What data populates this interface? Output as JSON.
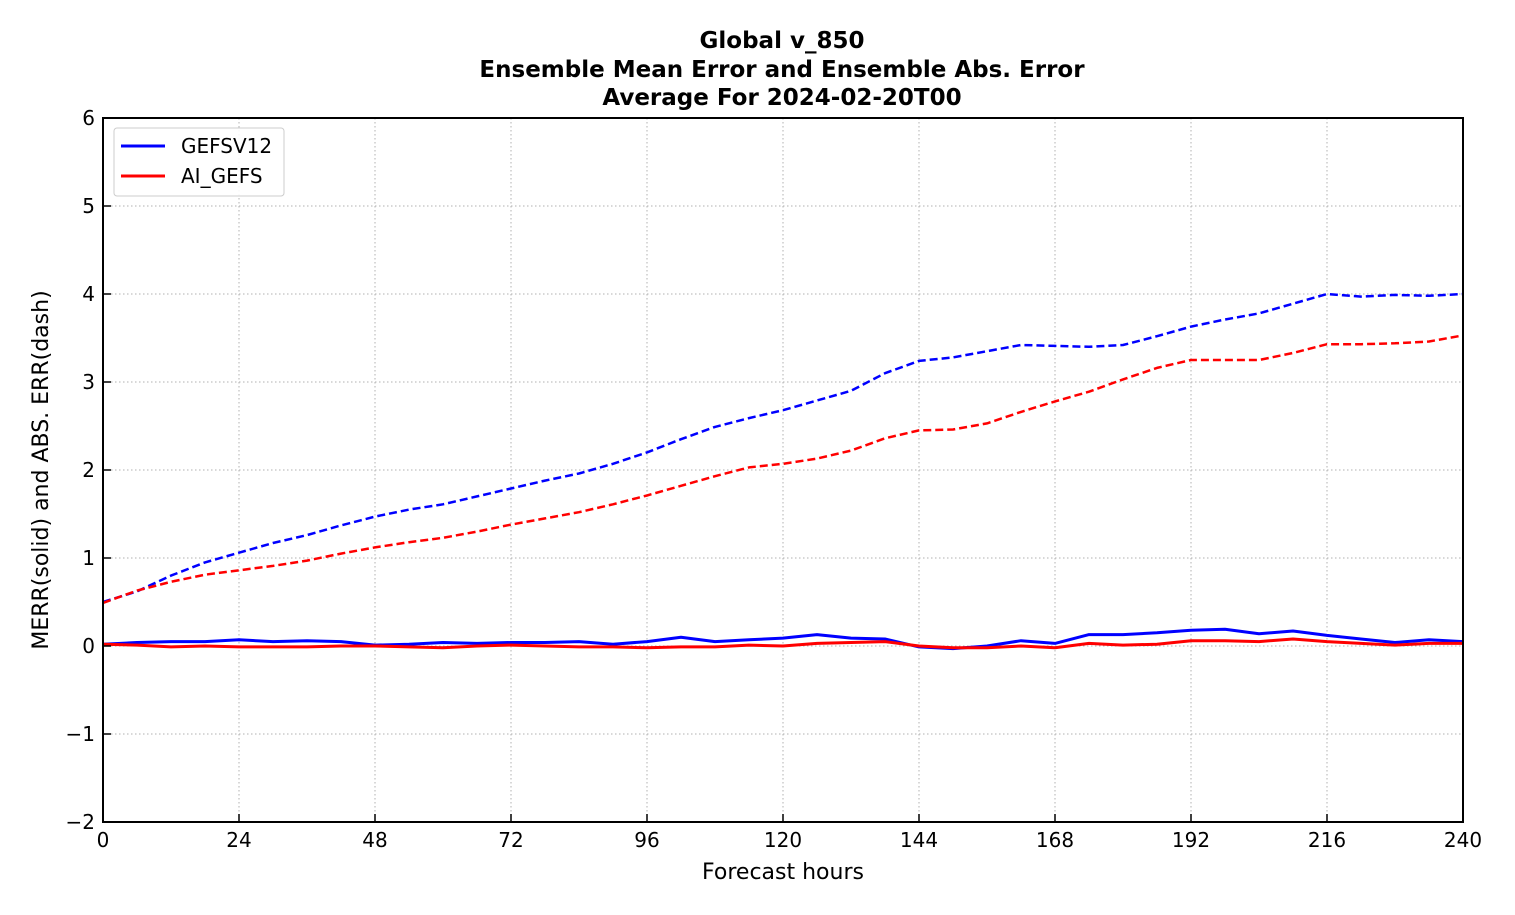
{
  "chart_data": {
    "type": "line",
    "title_lines": [
      "Global v_850",
      "Ensemble Mean Error and Ensemble Abs. Error",
      "Average For 2024-02-20T00"
    ],
    "xlabel": "Forecast hours",
    "ylabel": "MERR(solid) and ABS. ERR(dash)",
    "xlim": [
      0,
      240
    ],
    "ylim": [
      -2,
      6
    ],
    "x_ticks": [
      0,
      24,
      48,
      72,
      96,
      120,
      144,
      168,
      192,
      216,
      240
    ],
    "y_ticks": [
      -2,
      -1,
      0,
      1,
      2,
      3,
      4,
      5,
      6
    ],
    "y_tick_labels": [
      "−2",
      "−1",
      "0",
      "1",
      "2",
      "3",
      "4",
      "5",
      "6"
    ],
    "grid": true,
    "legend_placement": "top-left",
    "x": [
      0,
      6,
      12,
      18,
      24,
      30,
      36,
      42,
      48,
      54,
      60,
      66,
      72,
      78,
      84,
      90,
      96,
      102,
      108,
      114,
      120,
      126,
      132,
      138,
      144,
      150,
      156,
      162,
      168,
      174,
      180,
      186,
      192,
      198,
      204,
      210,
      216,
      222,
      228,
      234,
      240
    ],
    "series": [
      {
        "name": "GEFSV12",
        "color": "#0000ff",
        "merr": [
          0.02,
          0.04,
          0.05,
          0.05,
          0.07,
          0.05,
          0.06,
          0.05,
          0.01,
          0.02,
          0.04,
          0.03,
          0.04,
          0.04,
          0.05,
          0.02,
          0.05,
          0.1,
          0.05,
          0.07,
          0.09,
          0.13,
          0.09,
          0.08,
          -0.01,
          -0.03,
          0.0,
          0.06,
          0.03,
          0.13,
          0.13,
          0.15,
          0.18,
          0.19,
          0.14,
          0.17,
          0.12,
          0.08,
          0.04,
          0.07,
          0.05
        ],
        "abs_err": [
          0.5,
          0.62,
          0.8,
          0.95,
          1.06,
          1.17,
          1.26,
          1.37,
          1.47,
          1.55,
          1.61,
          1.7,
          1.79,
          1.88,
          1.96,
          2.07,
          2.2,
          2.35,
          2.49,
          2.59,
          2.68,
          2.79,
          2.9,
          3.1,
          3.24,
          3.28,
          3.35,
          3.42,
          3.41,
          3.4,
          3.42,
          3.52,
          3.63,
          3.71,
          3.78,
          3.89,
          4.0,
          3.97,
          3.99,
          3.98,
          4.0
        ]
      },
      {
        "name": "AI_GEFS",
        "color": "#ff0000",
        "merr": [
          0.02,
          0.01,
          -0.01,
          0.0,
          -0.01,
          -0.01,
          -0.01,
          0.0,
          0.0,
          -0.01,
          -0.02,
          0.0,
          0.01,
          0.0,
          -0.01,
          -0.01,
          -0.02,
          -0.01,
          -0.01,
          0.01,
          0.0,
          0.03,
          0.04,
          0.05,
          0.0,
          -0.02,
          -0.02,
          0.0,
          -0.02,
          0.03,
          0.01,
          0.02,
          0.06,
          0.06,
          0.05,
          0.08,
          0.05,
          0.03,
          0.01,
          0.03,
          0.03
        ],
        "abs_err": [
          0.49,
          0.63,
          0.73,
          0.81,
          0.86,
          0.91,
          0.97,
          1.05,
          1.12,
          1.18,
          1.23,
          1.3,
          1.38,
          1.45,
          1.52,
          1.61,
          1.71,
          1.82,
          1.93,
          2.03,
          2.07,
          2.13,
          2.22,
          2.36,
          2.45,
          2.46,
          2.53,
          2.66,
          2.78,
          2.89,
          3.03,
          3.16,
          3.25,
          3.25,
          3.25,
          3.33,
          3.43,
          3.43,
          3.44,
          3.46,
          3.53
        ]
      }
    ]
  }
}
